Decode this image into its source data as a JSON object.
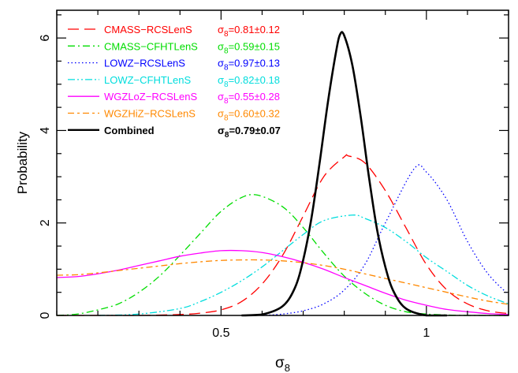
{
  "chart_data": {
    "type": "line",
    "title": "",
    "xlabel": "σ",
    "xlabel_sub": "8",
    "ylabel": "Probability",
    "xlim": [
      0.1,
      1.2
    ],
    "ylim": [
      0,
      6.6
    ],
    "x_ticks": [
      {
        "value": 0.5,
        "label": "0.5"
      },
      {
        "value": 1.0,
        "label": "1"
      }
    ],
    "y_ticks": [
      {
        "value": 0,
        "label": "0"
      },
      {
        "value": 2,
        "label": "2"
      },
      {
        "value": 4,
        "label": "4"
      },
      {
        "value": 6,
        "label": "6"
      }
    ],
    "x_minor_step": 0.1,
    "y_minor_step": 0.5,
    "grid": false,
    "legend_position": "top-left",
    "series": [
      {
        "name": "CMASS−RCSLenS",
        "result_symbol": "σ",
        "result_sub": "8",
        "result_value": "=0.81±0.12",
        "color": "#ff0000",
        "dash": "long-dash",
        "x": [
          0.1,
          0.2,
          0.3,
          0.4,
          0.45,
          0.5,
          0.55,
          0.6,
          0.65,
          0.7,
          0.75,
          0.8,
          0.81,
          0.85,
          0.9,
          0.95,
          1.0,
          1.05,
          1.1,
          1.15,
          1.2
        ],
        "y": [
          0.0,
          0.0,
          0.0,
          0.02,
          0.05,
          0.12,
          0.3,
          0.68,
          1.3,
          2.15,
          3.0,
          3.43,
          3.45,
          3.3,
          2.7,
          1.9,
          1.1,
          0.55,
          0.25,
          0.1,
          0.04
        ]
      },
      {
        "name": "CMASS−CFHTLenS",
        "result_symbol": "σ",
        "result_sub": "8",
        "result_value": "=0.59±0.15",
        "color": "#00dd00",
        "dash": "dash-dot",
        "x": [
          0.1,
          0.15,
          0.2,
          0.25,
          0.3,
          0.35,
          0.4,
          0.45,
          0.5,
          0.55,
          0.59,
          0.65,
          0.7,
          0.75,
          0.8,
          0.85,
          0.9,
          0.95,
          1.0,
          1.05,
          1.1,
          1.15,
          1.2
        ],
        "y": [
          0.0,
          0.03,
          0.12,
          0.25,
          0.5,
          0.85,
          1.3,
          1.78,
          2.25,
          2.55,
          2.6,
          2.35,
          1.9,
          1.35,
          0.85,
          0.48,
          0.22,
          0.08,
          0.03,
          0.01,
          0.0,
          0.0,
          0.0
        ]
      },
      {
        "name": "LOWZ−RCSLenS",
        "result_symbol": "σ",
        "result_sub": "8",
        "result_value": "=0.97±0.13",
        "color": "#0000ff",
        "dash": "dotted",
        "x": [
          0.6,
          0.65,
          0.7,
          0.75,
          0.8,
          0.85,
          0.9,
          0.97,
          1.0,
          1.05,
          1.1,
          1.15,
          1.2
        ],
        "y": [
          0.0,
          0.03,
          0.1,
          0.25,
          0.55,
          1.1,
          2.0,
          3.17,
          3.1,
          2.5,
          1.6,
          0.9,
          0.45
        ]
      },
      {
        "name": "LOWZ−CFHTLenS",
        "result_symbol": "σ",
        "result_sub": "8",
        "result_value": "=0.82±0.18",
        "color": "#00dddd",
        "dash": "dash-dot-dot",
        "x": [
          0.2,
          0.3,
          0.4,
          0.45,
          0.5,
          0.55,
          0.6,
          0.65,
          0.7,
          0.75,
          0.82,
          0.85,
          0.9,
          0.95,
          1.0,
          1.05,
          1.1,
          1.15,
          1.2
        ],
        "y": [
          0.0,
          0.03,
          0.15,
          0.3,
          0.5,
          0.75,
          1.05,
          1.4,
          1.75,
          2.05,
          2.17,
          2.1,
          1.9,
          1.6,
          1.25,
          0.95,
          0.65,
          0.42,
          0.25
        ]
      },
      {
        "name": "WGZLoZ−RCSLenS",
        "result_symbol": "σ",
        "result_sub": "8",
        "result_value": "=0.55±0.28",
        "color": "#ff00ff",
        "dash": "solid",
        "x": [
          0.1,
          0.15,
          0.2,
          0.25,
          0.3,
          0.35,
          0.4,
          0.45,
          0.5,
          0.55,
          0.6,
          0.65,
          0.7,
          0.75,
          0.8,
          0.85,
          0.9,
          0.95,
          1.0,
          1.05,
          1.1,
          1.15,
          1.2
        ],
        "y": [
          0.82,
          0.84,
          0.9,
          0.98,
          1.08,
          1.18,
          1.28,
          1.35,
          1.4,
          1.4,
          1.36,
          1.27,
          1.15,
          1.0,
          0.82,
          0.65,
          0.48,
          0.33,
          0.22,
          0.13,
          0.08,
          0.04,
          0.02
        ]
      },
      {
        "name": "WGZHiZ−RCSLenS",
        "result_symbol": "σ",
        "result_sub": "8",
        "result_value": "=0.60±0.32",
        "color": "#ff8800",
        "dash": "dash-short",
        "x": [
          0.1,
          0.15,
          0.2,
          0.25,
          0.3,
          0.35,
          0.4,
          0.45,
          0.5,
          0.55,
          0.6,
          0.65,
          0.7,
          0.75,
          0.8,
          0.85,
          0.9,
          0.95,
          1.0,
          1.05,
          1.1,
          1.15,
          1.2
        ],
        "y": [
          0.87,
          0.88,
          0.92,
          0.97,
          1.02,
          1.07,
          1.12,
          1.16,
          1.19,
          1.2,
          1.2,
          1.18,
          1.14,
          1.08,
          1.0,
          0.9,
          0.8,
          0.7,
          0.6,
          0.5,
          0.4,
          0.31,
          0.24
        ]
      },
      {
        "name": "Combined",
        "result_symbol": "σ",
        "result_sub": "8",
        "result_value": "=0.79±0.07",
        "color": "#000000",
        "dash": "solid-bold",
        "x": [
          0.55,
          0.6,
          0.65,
          0.68,
          0.7,
          0.72,
          0.74,
          0.76,
          0.78,
          0.79,
          0.8,
          0.82,
          0.84,
          0.86,
          0.88,
          0.9,
          0.92,
          0.95,
          1.0,
          1.05
        ],
        "y": [
          0.0,
          0.02,
          0.2,
          0.6,
          1.2,
          2.1,
          3.3,
          4.6,
          5.7,
          6.08,
          6.05,
          5.4,
          4.3,
          3.0,
          1.85,
          1.05,
          0.52,
          0.15,
          0.0,
          0.0
        ]
      }
    ]
  }
}
